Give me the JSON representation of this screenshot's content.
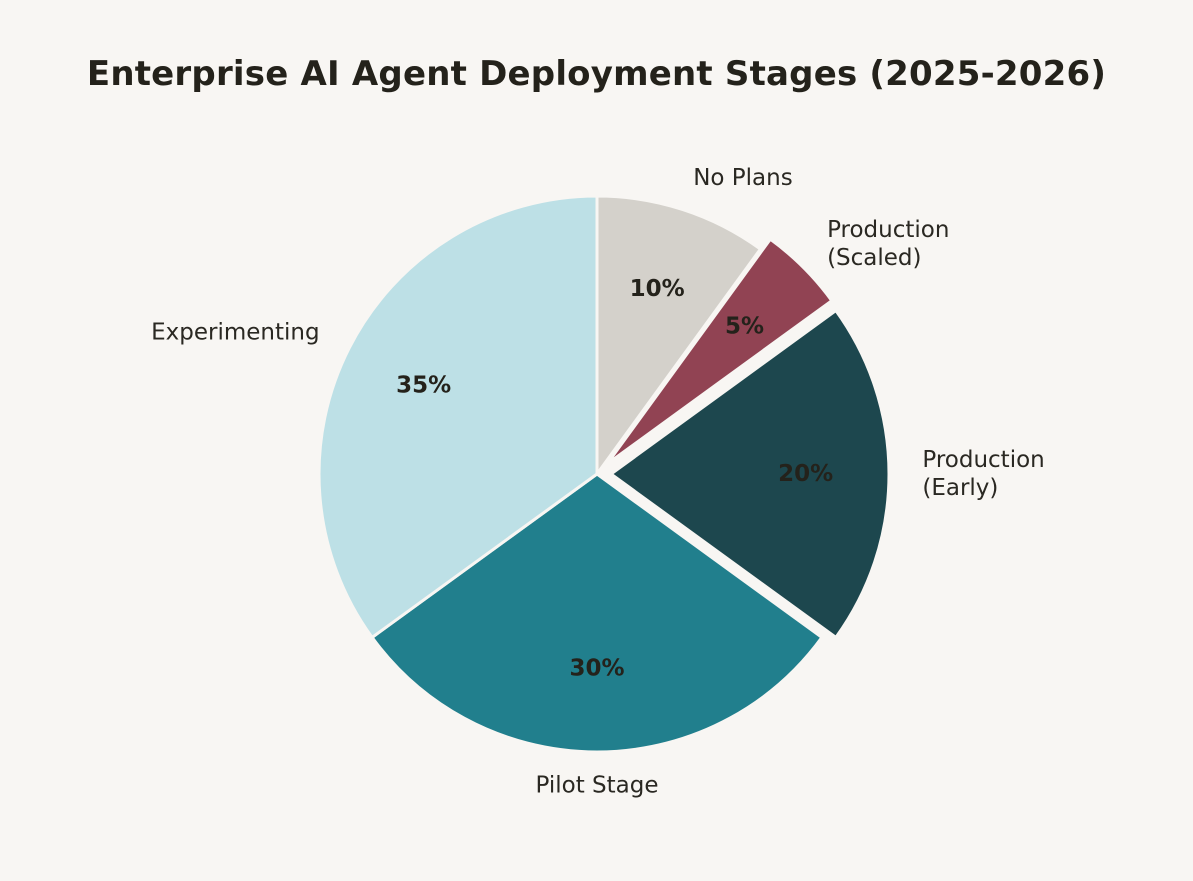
{
  "chart_data": {
    "type": "pie",
    "title": "Enterprise AI Agent Deployment Stages (2025-2026)",
    "slices": [
      {
        "label": [
          "No Plans"
        ],
        "value": 10,
        "pct_label": "10%",
        "color": "#d4d1cb",
        "exploded": false
      },
      {
        "label": [
          "Production",
          "(Scaled)"
        ],
        "value": 5,
        "pct_label": "5%",
        "color": "#914353",
        "exploded": true
      },
      {
        "label": [
          "Production",
          "(Early)"
        ],
        "value": 20,
        "pct_label": "20%",
        "color": "#1d474e",
        "exploded": true
      },
      {
        "label": [
          "Pilot Stage"
        ],
        "value": 30,
        "pct_label": "30%",
        "color": "#217f8d",
        "exploded": false
      },
      {
        "label": [
          "Experimenting"
        ],
        "value": 35,
        "pct_label": "35%",
        "color": "#bde0e6",
        "exploded": false
      }
    ],
    "start_angle": "top",
    "direction": "clockwise"
  }
}
